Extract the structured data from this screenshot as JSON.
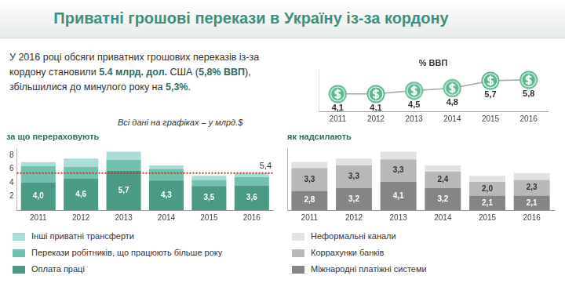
{
  "header": {
    "title": "Приватні грошові перекази в Україну із-за кордону"
  },
  "summary": {
    "text_parts": [
      "У 2016 році обсяги приватних грошових переказів із-за кордону становили ",
      "5.4 млрд. дол.",
      " США (",
      "5,8% ВВП",
      "), збільшилися до минулого року на ",
      "5,3%",
      "."
    ]
  },
  "note": "Всі дані на графіках – у млрд.$",
  "chart_data": [
    {
      "type": "line",
      "title": "% ВВП",
      "categories": [
        "2011",
        "2012",
        "2013",
        "2014",
        "2015",
        "2016"
      ],
      "values": [
        4.1,
        4.1,
        4.5,
        4.8,
        5.7,
        5.8
      ],
      "value_labels": [
        "4,1",
        "4,1",
        "4,5",
        "4,8",
        "5,7",
        "5,8"
      ],
      "color": "#5cb88f",
      "marker": "dollar",
      "data_labels": true,
      "ylim": [
        2,
        7
      ],
      "tick_labels": "x",
      "grid": false
    },
    {
      "type": "bar",
      "title": "за що перераховують",
      "stacked": true,
      "grid": false,
      "legend": "bottom",
      "data_labels": true,
      "categories": [
        "2011",
        "2012",
        "2013",
        "2014",
        "2015",
        "2016"
      ],
      "series": [
        {
          "name": "Оплата праці",
          "color": "#4a9a86",
          "values": [
            4.0,
            4.6,
            5.7,
            4.3,
            3.5,
            3.6
          ],
          "value_labels": [
            "4,0",
            "4,6",
            "5,7",
            "4,3",
            "3,5",
            "3,6"
          ]
        },
        {
          "name": "Перекази робітників, що працюють більше року",
          "color": "#72c0ad",
          "values": [
            2.4,
            1.7,
            1.6,
            1.7,
            0.9,
            1.2
          ]
        },
        {
          "name": "Інші приватні трансферти",
          "color": "#a9ddd5",
          "values": [
            0.6,
            1.2,
            1.2,
            0.5,
            0.6,
            0.6
          ]
        }
      ],
      "ylim": [
        0,
        9
      ],
      "yticks": [
        2,
        4,
        6,
        8
      ],
      "annotations": [
        {
          "value": 5.4,
          "label": "5,4",
          "color": "#c0392b",
          "line_style": "dotted"
        }
      ]
    },
    {
      "type": "bar",
      "title": "як надсилають",
      "stacked": true,
      "grid": false,
      "legend": "bottom",
      "data_labels": true,
      "tick_labels": "x",
      "categories": [
        "2011",
        "2012",
        "2013",
        "2014",
        "2015",
        "2016"
      ],
      "series": [
        {
          "name": "Міжнародні платіжні системи",
          "color": "#858585",
          "values": [
            2.8,
            3.2,
            4.1,
            3.2,
            2.1,
            2.1
          ],
          "value_labels": [
            "2,8",
            "3,2",
            "4,1",
            "3,2",
            "2,1",
            "2,1"
          ]
        },
        {
          "name": "Коррахунки банків",
          "color": "#b8b8b8",
          "values": [
            3.3,
            3.3,
            3.3,
            2.4,
            2.0,
            2.3
          ],
          "value_labels": [
            "3,3",
            "3,3",
            "3,3",
            "2,4",
            "2,0",
            "2,3"
          ]
        },
        {
          "name": "Неформальні канали",
          "color": "#e2e2e2",
          "values": [
            0.9,
            1.0,
            1.1,
            0.9,
            0.9,
            1.0
          ]
        }
      ],
      "ylim": [
        0,
        9
      ]
    }
  ]
}
